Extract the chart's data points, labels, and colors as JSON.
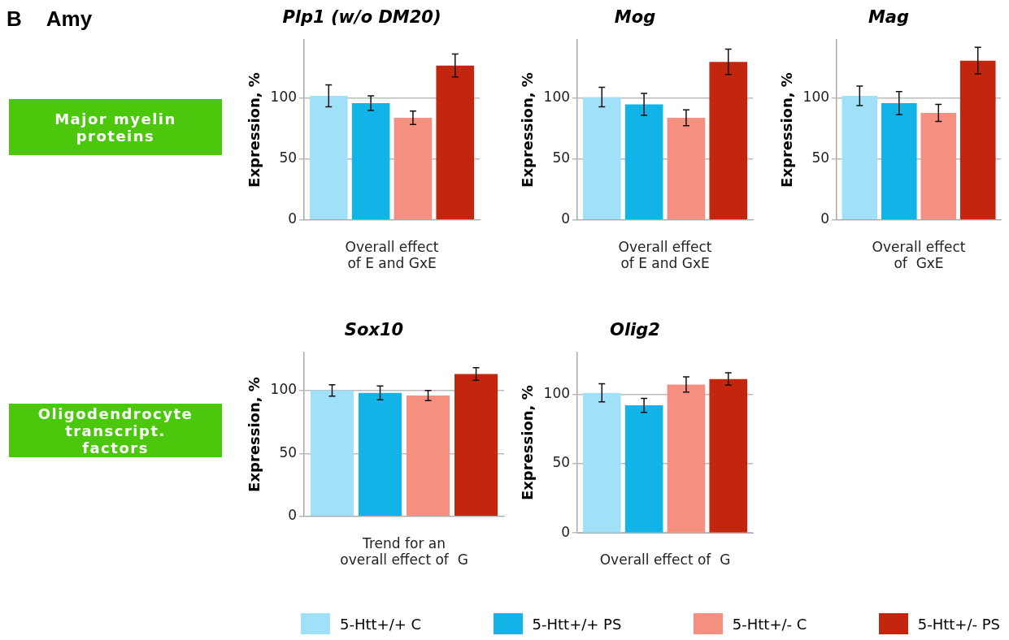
{
  "chart_data": [
    {
      "type": "other",
      "annotations": [
        "B",
        "Amy"
      ]
    },
    {
      "type": "other",
      "title": "Major myelin proteins"
    },
    {
      "type": "bar",
      "title": "Plp1 (w/o DM20)",
      "ylabel": "Expression, %",
      "xlabel": "Overall effect\nof E and GxE",
      "categories": [
        null
      ],
      "ylim": [
        0,
        148
      ],
      "yticks": [
        0,
        50,
        100
      ],
      "grid": "y",
      "series": [
        {
          "color": "#a0e0f8",
          "values": [
            102
          ],
          "errors": [
            9
          ]
        },
        {
          "color": "#12b4e8",
          "values": [
            96
          ],
          "errors": [
            6
          ]
        },
        {
          "color": "#f58f80",
          "values": [
            84
          ],
          "errors": [
            5.5
          ]
        },
        {
          "color": "#c2260f",
          "values": [
            127
          ],
          "errors": [
            9.5
          ]
        }
      ]
    },
    {
      "type": "bar",
      "title": "Mog",
      "ylabel": "Expression, %",
      "xlabel": "Overall effect\nof E and GxE",
      "categories": [
        null
      ],
      "ylim": [
        0,
        148
      ],
      "yticks": [
        0,
        50,
        100
      ],
      "grid": "y",
      "series": [
        {
          "color": "#a0e0f8",
          "values": [
            101
          ],
          "errors": [
            8
          ]
        },
        {
          "color": "#12b4e8",
          "values": [
            95
          ],
          "errors": [
            9
          ]
        },
        {
          "color": "#f58f80",
          "values": [
            84
          ],
          "errors": [
            6.5
          ]
        },
        {
          "color": "#c2260f",
          "values": [
            130
          ],
          "errors": [
            10.5
          ]
        }
      ]
    },
    {
      "type": "bar",
      "title": "Mag",
      "ylabel": "Expression, %",
      "xlabel": "Overall effect\nof  GxE",
      "categories": [
        null
      ],
      "ylim": [
        0,
        148
      ],
      "yticks": [
        0,
        50,
        100
      ],
      "grid": "y",
      "series": [
        {
          "color": "#a0e0f8",
          "values": [
            102
          ],
          "errors": [
            8
          ]
        },
        {
          "color": "#12b4e8",
          "values": [
            96
          ],
          "errors": [
            9.5
          ]
        },
        {
          "color": "#f58f80",
          "values": [
            88
          ],
          "errors": [
            7
          ]
        },
        {
          "color": "#c2260f",
          "values": [
            131
          ],
          "errors": [
            11
          ]
        }
      ]
    },
    {
      "type": "other",
      "title": "Oligodendrocyte transcript. factors"
    },
    {
      "type": "bar",
      "title": "Sox10",
      "ylabel": "Expression, %",
      "xlabel": "Trend for an\noverall effect of  G",
      "categories": [
        null
      ],
      "ylim": [
        0,
        130
      ],
      "yticks": [
        0,
        50,
        100
      ],
      "grid": "y",
      "series": [
        {
          "color": "#a0e0f8",
          "values": [
            100
          ],
          "errors": [
            4.5
          ]
        },
        {
          "color": "#12b4e8",
          "values": [
            98
          ],
          "errors": [
            5.5
          ]
        },
        {
          "color": "#f58f80",
          "values": [
            96
          ],
          "errors": [
            4
          ]
        },
        {
          "color": "#c2260f",
          "values": [
            113
          ],
          "errors": [
            5
          ]
        }
      ]
    },
    {
      "type": "bar",
      "title": "Olig2",
      "ylabel": "Expression, %",
      "xlabel": "Overall effect of  G",
      "categories": [
        null
      ],
      "ylim": [
        0,
        130
      ],
      "yticks": [
        0,
        50,
        100
      ],
      "grid": "y",
      "legend": "bottom",
      "series": [
        {
          "name": "5-Htt+/+ C",
          "color": "#a0e0f8",
          "values": [
            101
          ],
          "errors": [
            6.5
          ]
        },
        {
          "name": "5-Htt+/+ PS",
          "color": "#12b4e8",
          "values": [
            92
          ],
          "errors": [
            5
          ]
        },
        {
          "name": "5-Htt+/- C",
          "color": "#f58f80",
          "values": [
            107
          ],
          "errors": [
            5.5
          ]
        },
        {
          "name": "5-Htt+/- PS",
          "color": "#c2260f",
          "values": [
            111
          ],
          "errors": [
            4.5
          ]
        }
      ]
    }
  ]
}
